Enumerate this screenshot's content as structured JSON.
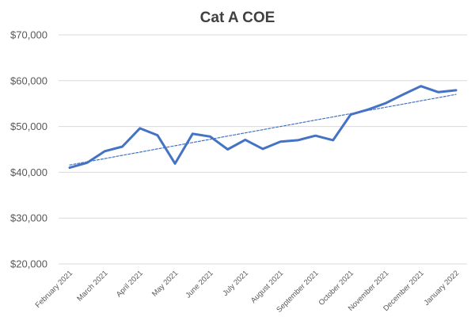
{
  "chart_data": {
    "type": "line",
    "title": "Cat A COE",
    "xlabel": "",
    "ylabel": "",
    "ylim": [
      20000,
      70000
    ],
    "yticks": [
      20000,
      30000,
      40000,
      50000,
      60000,
      70000
    ],
    "ytick_labels": [
      "$20,000",
      "$30,000",
      "$40,000",
      "$50,000",
      "$60,000",
      "$70,000"
    ],
    "grid": true,
    "legend": "none",
    "x_label_every": 2,
    "x": [
      "February 2021",
      "",
      "March 2021",
      "",
      "April 2021",
      "",
      "May 2021",
      "",
      "June 2021",
      "",
      "July 2021",
      "",
      "August 2021",
      "",
      "September 2021",
      "",
      "October 2021",
      "",
      "November 2021",
      "",
      "December 2021",
      "",
      "January 2022"
    ],
    "series": [
      {
        "color": "#4472C4",
        "style": "solid",
        "values": [
          41000,
          42100,
          44600,
          45600,
          49600,
          48100,
          41900,
          48400,
          47800,
          45000,
          47100,
          45100,
          46700,
          47000,
          48000,
          47000,
          52600,
          53700,
          55100,
          57000,
          58800,
          57500,
          57900
        ]
      },
      {
        "color": "#4472C4",
        "style": "dashed",
        "values": [
          41600,
          42300,
          43000,
          43700,
          44400,
          45100,
          45800,
          46500,
          47200,
          47900,
          48600,
          49300,
          50000,
          50700,
          51400,
          52100,
          52800,
          53500,
          54200,
          54900,
          55600,
          56300,
          57000
        ]
      }
    ]
  }
}
